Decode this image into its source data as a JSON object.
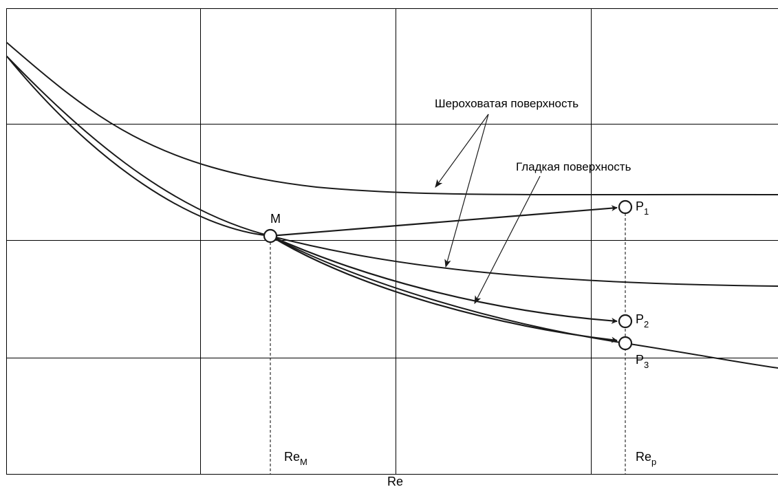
{
  "axis": {
    "x_label": "Re"
  },
  "labels": {
    "rough": "Шероховатая поверхность",
    "smooth": "Гладкая поверхность"
  },
  "points": {
    "M": "M",
    "P1": {
      "base": "P",
      "sub": "1"
    },
    "P2": {
      "base": "P",
      "sub": "2"
    },
    "P3": {
      "base": "P",
      "sub": "3"
    }
  },
  "reynolds_marks": {
    "ReM": {
      "base": "Re",
      "sub": "M"
    },
    "Rep": {
      "base": "Re",
      "sub": "p"
    }
  },
  "colors": {
    "ink": "#1a1a1a",
    "grid": "#000000",
    "background": "#ffffff"
  }
}
